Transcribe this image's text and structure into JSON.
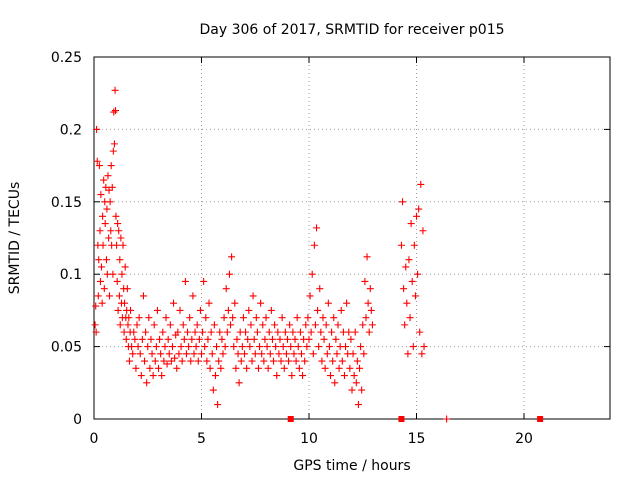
{
  "chart_data": {
    "type": "scatter",
    "title": "Day 306 of 2017, SRMTID for receiver p015",
    "xlabel": "GPS time / hours",
    "ylabel": "SRMTID / TECUs",
    "xlim": [
      0,
      24
    ],
    "ylim": [
      0,
      0.25
    ],
    "xticks": [
      0,
      5,
      10,
      15,
      20
    ],
    "xtick_labels": [
      "0",
      "5",
      "10",
      "15",
      "20"
    ],
    "yticks": [
      0,
      0.05,
      0.1,
      0.15,
      0.2,
      0.25
    ],
    "ytick_labels": [
      "0",
      "0.05",
      "0.1",
      "0.15",
      "0.2",
      "0.25"
    ],
    "grid": true,
    "marker": "+",
    "color": "#ff0000",
    "series": [
      {
        "name": "SRMTID",
        "points": [
          [
            0.05,
            0.065
          ],
          [
            0.08,
            0.078
          ],
          [
            0.1,
            0.06
          ],
          [
            0.12,
            0.2
          ],
          [
            0.15,
            0.178
          ],
          [
            0.18,
            0.12
          ],
          [
            0.2,
            0.085
          ],
          [
            0.22,
            0.11
          ],
          [
            0.25,
            0.175
          ],
          [
            0.28,
            0.13
          ],
          [
            0.3,
            0.095
          ],
          [
            0.32,
            0.155
          ],
          [
            0.35,
            0.105
          ],
          [
            0.38,
            0.08
          ],
          [
            0.4,
            0.14
          ],
          [
            0.42,
            0.12
          ],
          [
            0.45,
            0.165
          ],
          [
            0.48,
            0.09
          ],
          [
            0.5,
            0.15
          ],
          [
            0.52,
            0.135
          ],
          [
            0.55,
            0.16
          ],
          [
            0.58,
            0.11
          ],
          [
            0.6,
            0.145
          ],
          [
            0.62,
            0.1
          ],
          [
            0.65,
            0.168
          ],
          [
            0.68,
            0.125
          ],
          [
            0.7,
            0.158
          ],
          [
            0.72,
            0.085
          ],
          [
            0.75,
            0.15
          ],
          [
            0.78,
            0.13
          ],
          [
            0.8,
            0.175
          ],
          [
            0.82,
            0.12
          ],
          [
            0.85,
            0.16
          ],
          [
            0.88,
            0.1
          ],
          [
            0.9,
            0.185
          ],
          [
            0.92,
            0.212
          ],
          [
            0.95,
            0.19
          ],
          [
            0.98,
            0.227
          ],
          [
            1.0,
            0.213
          ],
          [
            1.02,
            0.14
          ],
          [
            1.05,
            0.12
          ],
          [
            1.08,
            0.095
          ],
          [
            1.1,
            0.135
          ],
          [
            1.12,
            0.075
          ],
          [
            1.15,
            0.13
          ],
          [
            1.18,
            0.085
          ],
          [
            1.2,
            0.11
          ],
          [
            1.22,
            0.065
          ],
          [
            1.25,
            0.125
          ],
          [
            1.28,
            0.08
          ],
          [
            1.3,
            0.1
          ],
          [
            1.32,
            0.07
          ],
          [
            1.35,
            0.12
          ],
          [
            1.38,
            0.09
          ],
          [
            1.4,
            0.06
          ],
          [
            1.42,
            0.08
          ],
          [
            1.45,
            0.105
          ],
          [
            1.48,
            0.07
          ],
          [
            1.5,
            0.055
          ],
          [
            1.52,
            0.075
          ],
          [
            1.55,
            0.09
          ],
          [
            1.58,
            0.065
          ],
          [
            1.6,
            0.05
          ],
          [
            1.62,
            0.07
          ],
          [
            1.65,
            0.04
          ],
          [
            1.68,
            0.06
          ],
          [
            1.7,
            0.075
          ],
          [
            1.75,
            0.05
          ],
          [
            1.8,
            0.045
          ],
          [
            1.85,
            0.06
          ],
          [
            1.9,
            0.055
          ],
          [
            1.95,
            0.035
          ],
          [
            2.0,
            0.065
          ],
          [
            2.05,
            0.05
          ],
          [
            2.1,
            0.07
          ],
          [
            2.15,
            0.045
          ],
          [
            2.2,
            0.03
          ],
          [
            2.25,
            0.055
          ],
          [
            2.3,
            0.085
          ],
          [
            2.35,
            0.04
          ],
          [
            2.4,
            0.06
          ],
          [
            2.45,
            0.025
          ],
          [
            2.5,
            0.05
          ],
          [
            2.55,
            0.07
          ],
          [
            2.6,
            0.035
          ],
          [
            2.65,
            0.055
          ],
          [
            2.7,
            0.045
          ],
          [
            2.75,
            0.03
          ],
          [
            2.8,
            0.065
          ],
          [
            2.85,
            0.04
          ],
          [
            2.9,
            0.05
          ],
          [
            2.95,
            0.075
          ],
          [
            3.0,
            0.035
          ],
          [
            3.05,
            0.055
          ],
          [
            3.1,
            0.045
          ],
          [
            3.15,
            0.03
          ],
          [
            3.2,
            0.06
          ],
          [
            3.25,
            0.04
          ],
          [
            3.3,
            0.05
          ],
          [
            3.35,
            0.07
          ],
          [
            3.4,
            0.038
          ],
          [
            3.45,
            0.055
          ],
          [
            3.5,
            0.045
          ],
          [
            3.55,
            0.065
          ],
          [
            3.6,
            0.04
          ],
          [
            3.65,
            0.05
          ],
          [
            3.7,
            0.08
          ],
          [
            3.75,
            0.042
          ],
          [
            3.8,
            0.058
          ],
          [
            3.85,
            0.035
          ],
          [
            3.9,
            0.06
          ],
          [
            3.95,
            0.045
          ],
          [
            4.0,
            0.075
          ],
          [
            4.05,
            0.05
          ],
          [
            4.1,
            0.04
          ],
          [
            4.15,
            0.065
          ],
          [
            4.2,
            0.055
          ],
          [
            4.25,
            0.095
          ],
          [
            4.3,
            0.045
          ],
          [
            4.35,
            0.06
          ],
          [
            4.4,
            0.05
          ],
          [
            4.45,
            0.07
          ],
          [
            4.5,
            0.04
          ],
          [
            4.55,
            0.055
          ],
          [
            4.6,
            0.085
          ],
          [
            4.65,
            0.045
          ],
          [
            4.7,
            0.06
          ],
          [
            4.75,
            0.05
          ],
          [
            4.8,
            0.065
          ],
          [
            4.85,
            0.04
          ],
          [
            4.9,
            0.055
          ],
          [
            4.95,
            0.075
          ],
          [
            5.0,
            0.045
          ],
          [
            5.05,
            0.06
          ],
          [
            5.1,
            0.095
          ],
          [
            5.15,
            0.05
          ],
          [
            5.2,
            0.07
          ],
          [
            5.25,
            0.04
          ],
          [
            5.3,
            0.055
          ],
          [
            5.35,
            0.08
          ],
          [
            5.4,
            0.035
          ],
          [
            5.45,
            0.06
          ],
          [
            5.5,
            0.045
          ],
          [
            5.55,
            0.02
          ],
          [
            5.6,
            0.065
          ],
          [
            5.65,
            0.03
          ],
          [
            5.7,
            0.05
          ],
          [
            5.75,
            0.01
          ],
          [
            5.8,
            0.04
          ],
          [
            5.85,
            0.06
          ],
          [
            5.9,
            0.035
          ],
          [
            5.95,
            0.055
          ],
          [
            6.0,
            0.045
          ],
          [
            6.05,
            0.07
          ],
          [
            6.1,
            0.05
          ],
          [
            6.15,
            0.09
          ],
          [
            6.2,
            0.06
          ],
          [
            6.25,
            0.075
          ],
          [
            6.3,
            0.1
          ],
          [
            6.35,
            0.065
          ],
          [
            6.4,
            0.112
          ],
          [
            6.45,
            0.07
          ],
          [
            6.5,
            0.05
          ],
          [
            6.55,
            0.08
          ],
          [
            6.6,
            0.035
          ],
          [
            6.65,
            0.055
          ],
          [
            6.7,
            0.045
          ],
          [
            6.75,
            0.025
          ],
          [
            6.8,
            0.06
          ],
          [
            6.85,
            0.04
          ],
          [
            6.9,
            0.05
          ],
          [
            6.95,
            0.07
          ],
          [
            7.0,
            0.045
          ],
          [
            7.05,
            0.06
          ],
          [
            7.1,
            0.035
          ],
          [
            7.15,
            0.055
          ],
          [
            7.2,
            0.075
          ],
          [
            7.25,
            0.05
          ],
          [
            7.3,
            0.065
          ],
          [
            7.35,
            0.04
          ],
          [
            7.4,
            0.085
          ],
          [
            7.45,
            0.055
          ],
          [
            7.5,
            0.045
          ],
          [
            7.55,
            0.07
          ],
          [
            7.6,
            0.06
          ],
          [
            7.65,
            0.035
          ],
          [
            7.7,
            0.05
          ],
          [
            7.75,
            0.08
          ],
          [
            7.8,
            0.045
          ],
          [
            7.85,
            0.065
          ],
          [
            7.9,
            0.04
          ],
          [
            7.95,
            0.055
          ],
          [
            8.0,
            0.07
          ],
          [
            8.05,
            0.05
          ],
          [
            8.1,
            0.035
          ],
          [
            8.15,
            0.06
          ],
          [
            8.2,
            0.045
          ],
          [
            8.25,
            0.075
          ],
          [
            8.3,
            0.055
          ],
          [
            8.35,
            0.04
          ],
          [
            8.4,
            0.065
          ],
          [
            8.45,
            0.05
          ],
          [
            8.5,
            0.03
          ],
          [
            8.55,
            0.06
          ],
          [
            8.6,
            0.045
          ],
          [
            8.65,
            0.055
          ],
          [
            8.7,
            0.04
          ],
          [
            8.75,
            0.07
          ],
          [
            8.8,
            0.05
          ],
          [
            8.85,
            0.035
          ],
          [
            8.9,
            0.06
          ],
          [
            8.95,
            0.045
          ],
          [
            9.0,
            0.055
          ],
          [
            9.05,
            0.04
          ],
          [
            9.1,
            0.065
          ],
          [
            9.15,
            0.05
          ],
          [
            9.2,
            0.03
          ],
          [
            9.25,
            0.06
          ],
          [
            9.3,
            0.045
          ],
          [
            9.35,
            0.055
          ],
          [
            9.4,
            0.04
          ],
          [
            9.45,
            0.07
          ],
          [
            9.5,
            0.05
          ],
          [
            9.55,
            0.035
          ],
          [
            9.6,
            0.06
          ],
          [
            9.65,
            0.045
          ],
          [
            9.7,
            0.03
          ],
          [
            9.75,
            0.055
          ],
          [
            9.8,
            0.04
          ],
          [
            9.85,
            0.065
          ],
          [
            9.9,
            0.05
          ],
          [
            9.95,
            0.07
          ],
          [
            10.0,
            0.055
          ],
          [
            10.05,
            0.085
          ],
          [
            10.1,
            0.06
          ],
          [
            10.15,
            0.1
          ],
          [
            10.2,
            0.045
          ],
          [
            10.25,
            0.12
          ],
          [
            10.3,
            0.065
          ],
          [
            10.35,
            0.132
          ],
          [
            10.4,
            0.075
          ],
          [
            10.45,
            0.05
          ],
          [
            10.5,
            0.09
          ],
          [
            10.55,
            0.06
          ],
          [
            10.6,
            0.04
          ],
          [
            10.65,
            0.07
          ],
          [
            10.7,
            0.055
          ],
          [
            10.75,
            0.035
          ],
          [
            10.8,
            0.065
          ],
          [
            10.85,
            0.045
          ],
          [
            10.9,
            0.08
          ],
          [
            10.95,
            0.05
          ],
          [
            11.0,
            0.03
          ],
          [
            11.05,
            0.06
          ],
          [
            11.1,
            0.04
          ],
          [
            11.15,
            0.07
          ],
          [
            11.2,
            0.025
          ],
          [
            11.25,
            0.055
          ],
          [
            11.3,
            0.045
          ],
          [
            11.35,
            0.065
          ],
          [
            11.4,
            0.035
          ],
          [
            11.45,
            0.05
          ],
          [
            11.5,
            0.075
          ],
          [
            11.55,
            0.04
          ],
          [
            11.6,
            0.06
          ],
          [
            11.65,
            0.03
          ],
          [
            11.7,
            0.05
          ],
          [
            11.75,
            0.08
          ],
          [
            11.8,
            0.045
          ],
          [
            11.85,
            0.06
          ],
          [
            11.9,
            0.035
          ],
          [
            11.95,
            0.055
          ],
          [
            12.0,
            0.02
          ],
          [
            12.05,
            0.045
          ],
          [
            12.1,
            0.03
          ],
          [
            12.15,
            0.06
          ],
          [
            12.2,
            0.025
          ],
          [
            12.25,
            0.04
          ],
          [
            12.3,
            0.01
          ],
          [
            12.35,
            0.035
          ],
          [
            12.4,
            0.05
          ],
          [
            12.45,
            0.02
          ],
          [
            12.5,
            0.065
          ],
          [
            12.55,
            0.045
          ],
          [
            12.6,
            0.095
          ],
          [
            12.65,
            0.07
          ],
          [
            12.7,
            0.112
          ],
          [
            12.75,
            0.08
          ],
          [
            12.8,
            0.06
          ],
          [
            12.85,
            0.09
          ],
          [
            12.9,
            0.075
          ],
          [
            12.95,
            0.065
          ],
          [
            14.3,
            0.12
          ],
          [
            14.35,
            0.15
          ],
          [
            14.4,
            0.09
          ],
          [
            14.45,
            0.065
          ],
          [
            14.5,
            0.105
          ],
          [
            14.55,
            0.08
          ],
          [
            14.6,
            0.045
          ],
          [
            14.65,
            0.11
          ],
          [
            14.7,
            0.07
          ],
          [
            14.75,
            0.135
          ],
          [
            14.8,
            0.095
          ],
          [
            14.85,
            0.05
          ],
          [
            14.9,
            0.12
          ],
          [
            14.95,
            0.085
          ],
          [
            15.0,
            0.14
          ],
          [
            15.05,
            0.1
          ],
          [
            15.1,
            0.145
          ],
          [
            15.15,
            0.06
          ],
          [
            15.2,
            0.162
          ],
          [
            15.25,
            0.045
          ],
          [
            15.3,
            0.13
          ],
          [
            15.35,
            0.05
          ],
          [
            16.4,
            0.0
          ]
        ]
      }
    ],
    "zero_markers_x": [
      9.15,
      14.3,
      20.75
    ]
  }
}
